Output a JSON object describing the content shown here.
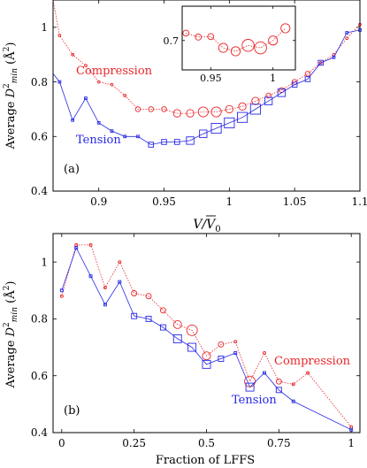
{
  "colors": {
    "compression": "#e8262a",
    "tension": "#2828e6",
    "axis": "#000000"
  },
  "chart_data": [
    {
      "type": "line",
      "panel_label": "(a)",
      "xlabel": "V/V̄₀",
      "ylabel": "Average D²min (Å²)",
      "xlim": [
        0.865,
        1.1
      ],
      "ylim": [
        0.4,
        1.1
      ],
      "xticks": [
        0.9,
        0.95,
        1,
        1.05,
        1.1
      ],
      "xtick_labels": [
        "0.9",
        "0.95",
        "1",
        "1.05",
        "1.1"
      ],
      "yticks": [
        0.4,
        0.6,
        0.8,
        1.0
      ],
      "ytick_labels": [
        "0.4",
        "0.6",
        "0.8",
        "1"
      ],
      "series": [
        {
          "name": "Compression",
          "x": [
            0.86,
            0.87,
            0.88,
            0.89,
            0.9,
            0.91,
            0.92,
            0.93,
            0.94,
            0.95,
            0.96,
            0.97,
            0.98,
            0.99,
            1.0,
            1.01,
            1.02,
            1.03,
            1.04,
            1.05,
            1.06,
            1.07,
            1.08,
            1.09,
            1.1
          ],
          "y": [
            1.13,
            0.97,
            0.9,
            0.86,
            0.8,
            0.79,
            0.75,
            0.7,
            0.7,
            0.7,
            0.685,
            0.685,
            0.69,
            0.69,
            0.7,
            0.71,
            0.73,
            0.75,
            0.77,
            0.8,
            0.83,
            0.87,
            0.9,
            0.96,
            1.01
          ],
          "marker_size": [
            1,
            1,
            1,
            1,
            1,
            1,
            1,
            2,
            2,
            2,
            3,
            3,
            4,
            4,
            3,
            3,
            3,
            2,
            2,
            2,
            2,
            1,
            1,
            1,
            1
          ]
        },
        {
          "name": "Tension",
          "x": [
            0.86,
            0.87,
            0.88,
            0.89,
            0.9,
            0.91,
            0.92,
            0.93,
            0.94,
            0.95,
            0.96,
            0.97,
            0.98,
            0.99,
            1.0,
            1.01,
            1.02,
            1.03,
            1.04,
            1.05,
            1.06,
            1.07,
            1.08,
            1.09,
            1.1
          ],
          "y": [
            0.83,
            0.8,
            0.66,
            0.74,
            0.65,
            0.62,
            0.6,
            0.6,
            0.57,
            0.58,
            0.58,
            0.585,
            0.61,
            0.63,
            0.65,
            0.67,
            0.7,
            0.73,
            0.76,
            0.79,
            0.81,
            0.87,
            0.89,
            0.98,
            0.99
          ],
          "marker_size": [
            1,
            1,
            1,
            1,
            1,
            1,
            1,
            1,
            2,
            2,
            2,
            3,
            3,
            4,
            4,
            4,
            4,
            3,
            3,
            2,
            2,
            2,
            1,
            1,
            1
          ]
        }
      ],
      "annotations": {
        "compression_label": "Compression",
        "tension_label": "Tension"
      },
      "inset": {
        "xlim": [
          0.927,
          1.018
        ],
        "ylim": [
          0.64,
          0.77
        ],
        "xticks": [
          0.95,
          1.0
        ],
        "xtick_labels": [
          "0.95",
          "1"
        ],
        "yticks": [
          0.7
        ],
        "ytick_labels": [
          "0.7"
        ],
        "series": {
          "name": "Compression",
          "x": [
            0.93,
            0.94,
            0.95,
            0.96,
            0.97,
            0.98,
            0.99,
            1.0,
            1.01
          ],
          "y": [
            0.715,
            0.707,
            0.708,
            0.685,
            0.678,
            0.69,
            0.685,
            0.7,
            0.725
          ],
          "marker_size": [
            2,
            2,
            2,
            3,
            3,
            4,
            4,
            3,
            3
          ]
        }
      }
    },
    {
      "type": "line",
      "panel_label": "(b)",
      "xlabel": "Fraction of LFFS",
      "ylabel": "Average D²min (Å²)",
      "xlim": [
        -0.03,
        1.03
      ],
      "ylim": [
        0.4,
        1.1
      ],
      "xticks": [
        0,
        0.25,
        0.5,
        0.75,
        1
      ],
      "xtick_labels": [
        "0",
        "0.25",
        "0.5",
        "0.75",
        "1"
      ],
      "yticks": [
        0.4,
        0.6,
        0.8,
        1.0
      ],
      "ytick_labels": [
        "0.4",
        "0.6",
        "0.8",
        "1"
      ],
      "series": [
        {
          "name": "Compression",
          "x": [
            0.0,
            0.05,
            0.1,
            0.15,
            0.2,
            0.25,
            0.3,
            0.35,
            0.4,
            0.45,
            0.5,
            0.55,
            0.6,
            0.65,
            0.7,
            0.75,
            0.8,
            0.85,
            1.0
          ],
          "y": [
            0.88,
            1.06,
            1.06,
            0.91,
            1.0,
            0.89,
            0.88,
            0.83,
            0.78,
            0.76,
            0.67,
            0.71,
            0.72,
            0.58,
            0.68,
            0.58,
            0.57,
            0.61,
            0.42
          ],
          "marker_size": [
            1,
            1,
            1,
            1,
            1,
            2,
            2,
            2,
            3,
            4,
            3,
            2,
            1,
            4,
            1,
            2,
            1,
            1,
            1
          ]
        },
        {
          "name": "Tension",
          "x": [
            0.0,
            0.05,
            0.1,
            0.15,
            0.2,
            0.25,
            0.3,
            0.35,
            0.4,
            0.45,
            0.5,
            0.55,
            0.6,
            0.65,
            0.7,
            0.75,
            0.8,
            1.0
          ],
          "y": [
            0.9,
            1.05,
            0.95,
            0.85,
            0.93,
            0.81,
            0.8,
            0.77,
            0.73,
            0.7,
            0.64,
            0.66,
            0.68,
            0.56,
            0.61,
            0.55,
            0.51,
            0.41
          ],
          "marker_size": [
            1,
            1,
            1,
            1,
            1,
            2,
            2,
            2,
            3,
            3,
            3,
            2,
            1,
            3,
            1,
            2,
            1,
            1
          ]
        }
      ],
      "annotations": {
        "compression_label": "Compression",
        "tension_label": "Tension"
      }
    }
  ]
}
